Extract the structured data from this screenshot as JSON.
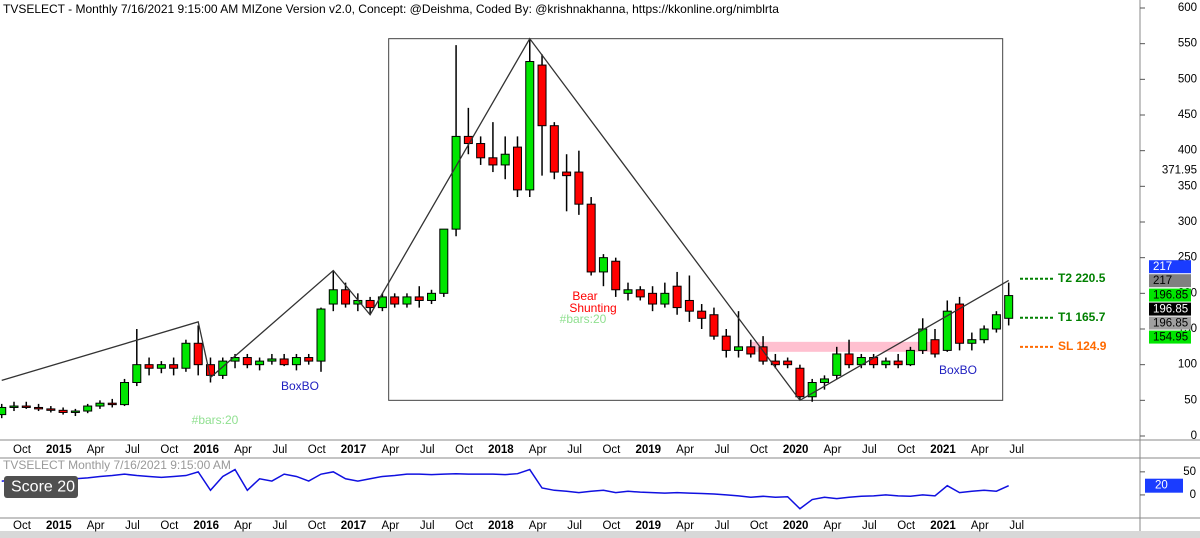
{
  "chart_data": {
    "type": "candlestick",
    "title": "TVSELECT - Monthly 7/16/2021 9:15:00 AM MIZone Version v2.0, Concept: @Deishma, Coded By: @krishnakhanna, https://kkonline.org/nimblrta",
    "categories": [
      null,
      "Oct",
      null,
      null,
      "2015",
      null,
      null,
      "Apr",
      null,
      null,
      "Jul",
      null,
      null,
      "Oct",
      null,
      null,
      "2016",
      null,
      null,
      "Apr",
      null,
      null,
      "Jul",
      null,
      null,
      "Oct",
      null,
      null,
      "2017",
      null,
      null,
      "Apr",
      null,
      null,
      "Jul",
      null,
      null,
      "Oct",
      null,
      null,
      "2018",
      null,
      null,
      "Apr",
      null,
      null,
      "Jul",
      null,
      null,
      "Oct",
      null,
      null,
      "2019",
      null,
      null,
      "Apr",
      null,
      null,
      "Jul",
      null,
      null,
      "Oct",
      null,
      null,
      "2020",
      null,
      null,
      "Apr",
      null,
      null,
      "Jul",
      null,
      null,
      "Oct",
      null,
      null,
      "2021",
      null,
      null,
      "Apr",
      null,
      null,
      "Jul"
    ],
    "open": [
      30,
      40,
      42,
      40,
      38,
      36,
      33,
      35,
      42,
      46,
      44,
      75,
      100,
      95,
      100,
      95,
      130,
      100,
      85,
      105,
      110,
      100,
      105,
      108,
      100,
      110,
      105,
      185,
      205,
      185,
      190,
      180,
      195,
      185,
      195,
      190,
      200,
      290,
      420,
      410,
      390,
      380,
      405,
      345,
      520,
      435,
      370,
      370,
      325,
      230,
      245,
      200,
      205,
      200,
      185,
      210,
      190,
      175,
      170,
      140,
      120,
      125,
      125,
      105,
      105,
      95,
      55,
      75,
      85,
      115,
      100,
      110,
      100,
      105,
      100,
      120,
      135,
      120,
      185,
      130,
      135,
      150,
      165
    ],
    "high": [
      45,
      48,
      48,
      45,
      42,
      40,
      38,
      45,
      50,
      52,
      80,
      150,
      110,
      105,
      110,
      135,
      155,
      110,
      110,
      115,
      115,
      110,
      115,
      115,
      115,
      115,
      180,
      232,
      215,
      200,
      195,
      200,
      200,
      200,
      210,
      205,
      290,
      548,
      460,
      420,
      440,
      420,
      420,
      557,
      535,
      440,
      395,
      400,
      335,
      255,
      250,
      215,
      210,
      210,
      215,
      230,
      225,
      185,
      180,
      150,
      175,
      135,
      140,
      115,
      110,
      100,
      80,
      85,
      125,
      135,
      115,
      115,
      110,
      115,
      125,
      165,
      150,
      190,
      195,
      145,
      155,
      175,
      215
    ],
    "low": [
      25,
      35,
      38,
      35,
      33,
      30,
      28,
      32,
      38,
      40,
      42,
      70,
      85,
      88,
      85,
      90,
      85,
      75,
      80,
      95,
      95,
      92,
      100,
      98,
      92,
      100,
      90,
      175,
      180,
      175,
      170,
      175,
      180,
      180,
      180,
      185,
      195,
      280,
      395,
      380,
      370,
      360,
      335,
      335,
      365,
      360,
      315,
      310,
      225,
      210,
      195,
      190,
      190,
      175,
      180,
      170,
      160,
      150,
      135,
      110,
      110,
      110,
      100,
      95,
      95,
      50,
      48,
      65,
      80,
      95,
      95,
      95,
      95,
      95,
      98,
      115,
      110,
      118,
      120,
      120,
      130,
      145,
      155
    ],
    "close": [
      40,
      42,
      40,
      38,
      36,
      33,
      35,
      42,
      46,
      44,
      75,
      100,
      95,
      100,
      95,
      130,
      100,
      85,
      105,
      110,
      100,
      105,
      108,
      100,
      110,
      105,
      178,
      205,
      185,
      190,
      180,
      195,
      185,
      195,
      190,
      200,
      290,
      420,
      410,
      390,
      380,
      395,
      345,
      525,
      435,
      370,
      365,
      325,
      230,
      250,
      205,
      205,
      195,
      185,
      200,
      180,
      175,
      165,
      140,
      120,
      125,
      115,
      105,
      100,
      100,
      55,
      75,
      80,
      115,
      100,
      110,
      100,
      105,
      100,
      120,
      150,
      115,
      175,
      130,
      135,
      150,
      170,
      196.85
    ],
    "up_color": "#00e600",
    "down_color": "#ff0000",
    "ylim": [
      0,
      600
    ],
    "yticks": [
      0,
      50,
      100,
      150,
      200,
      250,
      300,
      350,
      400,
      450,
      500,
      550,
      600
    ],
    "last_price_label": 371.95,
    "zigzag": {
      "index": [
        0,
        16,
        17,
        27,
        30,
        43,
        65,
        82
      ],
      "values": [
        78,
        160,
        82,
        232,
        170,
        557,
        50,
        218
      ],
      "color": "#333333"
    },
    "box": {
      "from": 32,
      "to": 82,
      "top": 557,
      "bottom": 50
    },
    "zones": [
      {
        "from": 61,
        "to": 76,
        "low": 118,
        "high": 132,
        "color": "#ffc0d0"
      }
    ],
    "levels": [
      {
        "label": "T2 220.5",
        "value": 220.5,
        "color": "#008000"
      },
      {
        "label": "T1 165.7",
        "value": 165.7,
        "color": "#008000"
      },
      {
        "label": "SL 124.9",
        "value": 124.9,
        "color": "#ff6a00"
      }
    ],
    "price_tags": [
      {
        "value": 217,
        "color": "#1a3cff",
        "text_color": "#ffffff"
      },
      {
        "value": 217,
        "color": "#808080",
        "text_color": "#000000"
      },
      {
        "value": 196.85,
        "color": "#00e600",
        "text_color": "#000000"
      },
      {
        "value": 196.85,
        "color": "#000000",
        "text_color": "#ffffff"
      },
      {
        "value": 196.85,
        "color": "#a0a0a0",
        "text_color": "#000000"
      },
      {
        "value": 154.95,
        "color": "#00e600",
        "text_color": "#000000"
      }
    ],
    "annotations": [
      {
        "text": "BoxBO",
        "color": "#2020c0"
      },
      {
        "text": "BoxBO",
        "color": "#2020c0"
      },
      {
        "text": "#bars:20",
        "color": "#90e090"
      },
      {
        "text": "#bars:20",
        "color": "#90e090"
      },
      {
        "text": "Bear",
        "color": "#ff0000"
      },
      {
        "text": "Shunting",
        "color": "#ff0000"
      }
    ],
    "score": {
      "title": "TVSELECT Monthly 7/16/2021 9:15:00 AM",
      "label": "Score 20",
      "color": "#1010e0",
      "ylim": [
        -50,
        80
      ],
      "yticks": [
        0,
        50
      ],
      "values": [
        30,
        32,
        35,
        33,
        36,
        38,
        35,
        37,
        40,
        42,
        45,
        42,
        40,
        38,
        40,
        42,
        50,
        10,
        40,
        55,
        10,
        35,
        30,
        45,
        40,
        30,
        45,
        50,
        35,
        30,
        35,
        40,
        42,
        45,
        45,
        44,
        45,
        46,
        45,
        45,
        45,
        44,
        46,
        55,
        15,
        10,
        8,
        5,
        8,
        10,
        5,
        8,
        6,
        5,
        4,
        5,
        4,
        3,
        2,
        0,
        -2,
        -5,
        -3,
        -5,
        -4,
        -30,
        -10,
        -5,
        -8,
        -5,
        -3,
        -2,
        0,
        -2,
        -3,
        0,
        -2,
        20,
        5,
        8,
        10,
        8,
        20
      ]
    }
  }
}
